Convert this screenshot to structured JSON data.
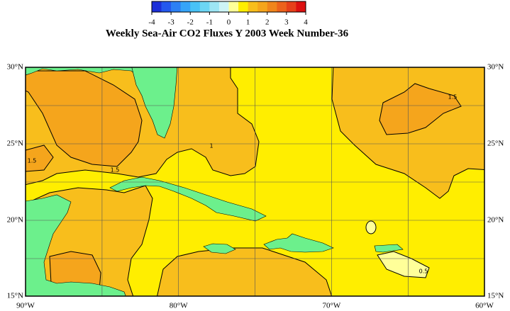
{
  "colorbar": {
    "ticks": [
      -4,
      -3,
      -2,
      -1,
      0,
      1,
      2,
      3,
      4
    ],
    "colors": [
      "#1c2fd8",
      "#2458ee",
      "#2c80f4",
      "#36a4f8",
      "#48c2f6",
      "#6cd6f4",
      "#9de6f4",
      "#cdf4f6",
      "#ffff99",
      "#ffee00",
      "#f8be1c",
      "#f5a51c",
      "#f0851c",
      "#ec621c",
      "#e6401a",
      "#dc1010"
    ]
  },
  "title": "Weekly Sea-Air CO2 Fluxes Y 2003 Week Number-36",
  "map": {
    "lat_labels": [
      "30°N",
      "25°N",
      "20°N",
      "15°N"
    ],
    "lon_labels": [
      "90°W",
      "80°W",
      "70°W",
      "60°W"
    ],
    "contour_labels": [
      "1.5",
      "1.5",
      "1.5",
      "1",
      "0.5"
    ]
  }
}
